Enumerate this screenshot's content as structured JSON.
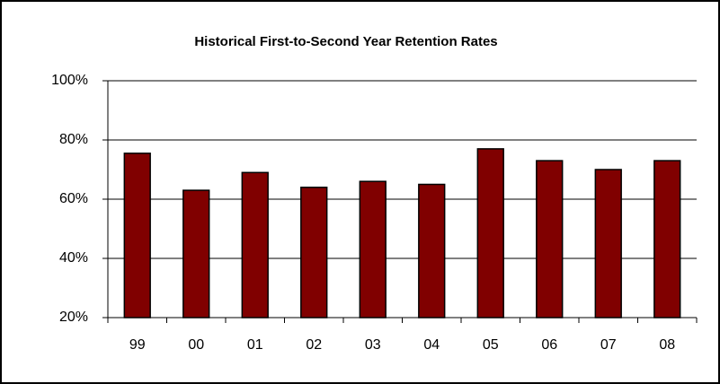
{
  "chart_data": {
    "type": "bar",
    "title": "Historical First-to-Second Year Retention Rates",
    "categories": [
      "99",
      "00",
      "01",
      "02",
      "03",
      "04",
      "05",
      "06",
      "07",
      "08"
    ],
    "values": [
      75.5,
      63,
      69,
      64,
      66,
      65,
      77,
      73,
      70,
      73
    ],
    "color": "#800000",
    "ylim": [
      20,
      100
    ],
    "yticks": [
      {
        "value": 20,
        "label": "20%"
      },
      {
        "value": 40,
        "label": "40%"
      },
      {
        "value": 60,
        "label": "60%"
      },
      {
        "value": 80,
        "label": "80%"
      },
      {
        "value": 100,
        "label": "100%"
      }
    ],
    "grid": true
  }
}
